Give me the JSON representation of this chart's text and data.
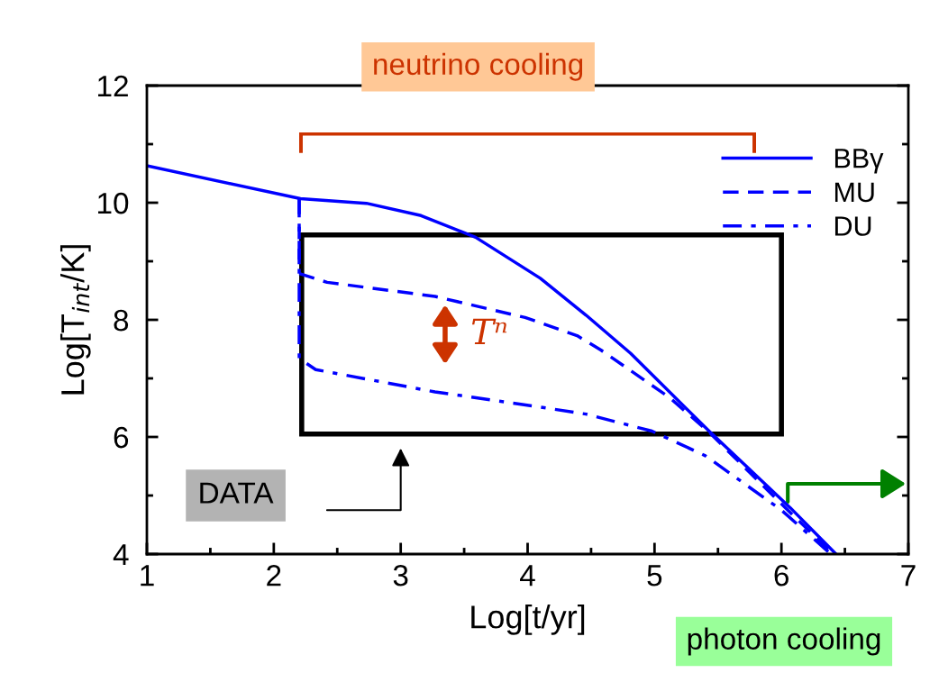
{
  "chart_data": {
    "type": "line",
    "xlabel": "Log[t/yr]",
    "ylabel": "Log[T$_{int}$/K]",
    "xlim": [
      1,
      7
    ],
    "ylim": [
      4,
      12
    ],
    "xticks": [
      1,
      {
        "value": 1.5,
        "label": null
      },
      2,
      {
        "value": 2.5,
        "label": null
      },
      3,
      {
        "value": 3.5,
        "label": null
      },
      4,
      {
        "value": 4.5,
        "label": null
      },
      5,
      {
        "value": 5.5,
        "label": null
      },
      6,
      {
        "value": 6.5,
        "label": null
      },
      7
    ],
    "yticks": [
      4,
      {
        "value": 5,
        "label": null
      },
      6,
      {
        "value": 7,
        "label": null
      },
      8,
      {
        "value": 9,
        "label": null
      },
      10,
      {
        "value": 11,
        "label": null
      },
      12
    ],
    "grid": false,
    "legend": "top right",
    "marker": "none",
    "series": [
      {
        "name": "BBγ",
        "color": "#0000ff",
        "line_style": "solid",
        "x": [
          1.0,
          2.21,
          2.73,
          3.16,
          3.59,
          4.1,
          4.46,
          4.81,
          5.43,
          6.07,
          6.43
        ],
        "values": [
          10.63,
          10.07,
          9.99,
          9.78,
          9.41,
          8.71,
          8.08,
          7.43,
          6.1,
          4.79,
          4.0
        ]
      },
      {
        "name": "MU",
        "color": "#0000ff",
        "line_style": "dashed",
        "x": [
          2.2,
          2.2,
          2.42,
          3.27,
          3.98,
          4.39,
          4.58,
          5.12,
          5.43,
          6.05,
          6.41
        ],
        "values": [
          10.07,
          8.79,
          8.64,
          8.4,
          8.04,
          7.73,
          7.48,
          6.67,
          6.08,
          4.75,
          4.0
        ]
      },
      {
        "name": "DU",
        "color": "#0000ff",
        "line_style": "dashdot",
        "x": [
          2.2,
          2.2,
          2.33,
          3.27,
          4.1,
          4.46,
          4.98,
          5.4,
          6.0,
          6.39
        ],
        "values": [
          10.07,
          7.34,
          7.15,
          6.77,
          6.51,
          6.39,
          6.1,
          5.68,
          4.75,
          4.0
        ]
      }
    ],
    "annotations": [
      "neutrino cooling",
      "Tⁿ",
      "DATA",
      "photon cooling"
    ]
  }
}
